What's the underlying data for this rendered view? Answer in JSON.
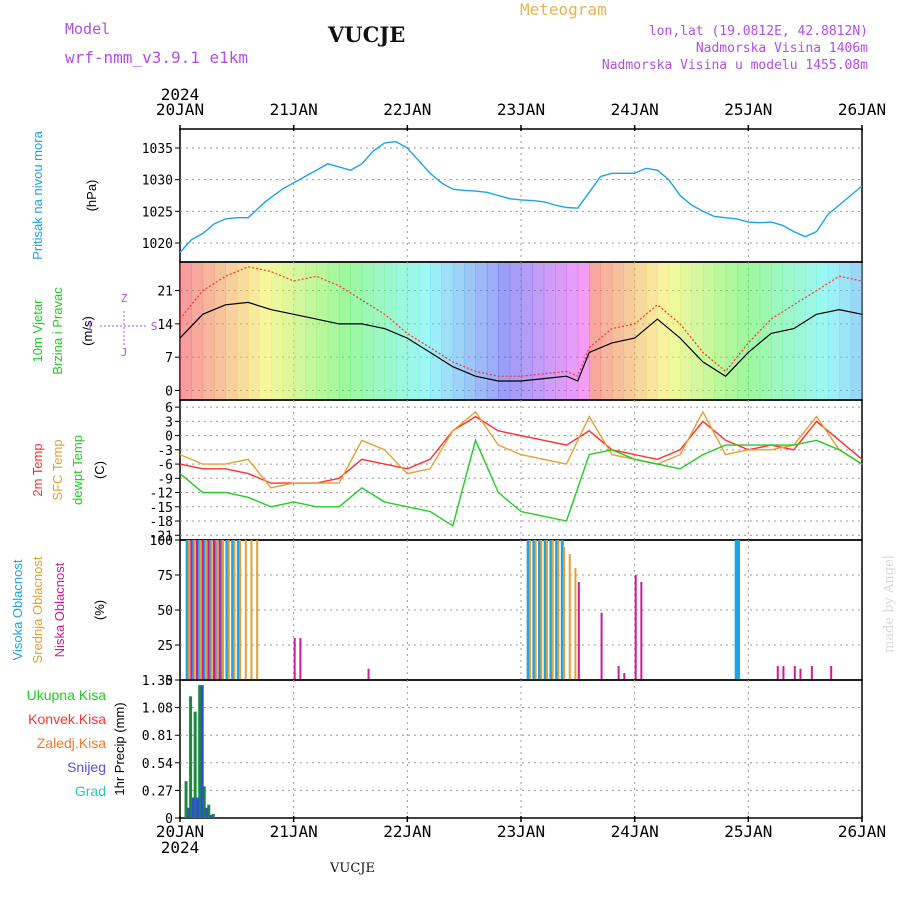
{
  "header": {
    "model_label": "Model",
    "model_name": "wrf-nmm_v3.9.1  e1km",
    "station": "VUCJE",
    "meteogram": "Meteogram",
    "coords": "lon,lat (19.0812E, 42.8812N)",
    "elevation": "Nadmorska Visina 1406m",
    "model_elevation": "Nadmorska Visina u modelu 1455.08m",
    "footer_station": "VUCJE",
    "credit": "made by Angel"
  },
  "colors": {
    "pressure": "#1aa3e6",
    "temp2m": "#ff3030",
    "sfc": "#e6a032",
    "dewpt": "#22cc22",
    "high_cloud": "#1aa3e6",
    "mid_cloud": "#e6a032",
    "low_cloud": "#cc1a99",
    "model": "#b34de6",
    "title_orange": "#e6b450"
  },
  "chart_data": [
    {
      "type": "line",
      "panel": "pressure",
      "ylabel": [
        "Pritisak na nivou mora",
        "(hPa)"
      ],
      "yticks": [
        1020,
        1025,
        1030,
        1035
      ],
      "ylim": [
        1017,
        1038
      ],
      "x_start_label": "2024",
      "x_ticks": [
        "20JAN",
        "21JAN",
        "22JAN",
        "23JAN",
        "24JAN",
        "25JAN",
        "26JAN"
      ],
      "x_days": [
        0,
        6
      ],
      "series": [
        {
          "x": [
            0,
            0.1,
            0.2,
            0.3,
            0.4,
            0.5,
            0.6,
            0.75,
            0.9,
            1.0,
            1.1,
            1.2,
            1.3,
            1.4,
            1.5,
            1.6,
            1.7,
            1.8,
            1.9,
            2.0,
            2.1,
            2.2,
            2.3,
            2.4,
            2.5,
            2.6,
            2.7,
            2.8,
            2.9,
            3.0,
            3.1,
            3.2,
            3.3,
            3.4,
            3.5,
            3.6,
            3.7,
            3.8,
            3.9,
            4.0,
            4.1,
            4.2,
            4.3,
            4.4,
            4.5,
            4.6,
            4.7,
            4.8,
            4.9,
            5.0,
            5.1,
            5.2,
            5.3,
            5.4,
            5.5,
            5.6,
            5.7,
            5.8,
            5.9,
            6.0
          ],
          "values": [
            1018.5,
            1020.5,
            1021.5,
            1023,
            1023.8,
            1024,
            1024,
            1026.5,
            1028.5,
            1029.5,
            1030.5,
            1031.5,
            1032.5,
            1032,
            1031.5,
            1032.5,
            1034.5,
            1035.8,
            1036,
            1035,
            1033,
            1031,
            1029.5,
            1028.5,
            1028.3,
            1028.2,
            1028,
            1027.5,
            1027,
            1026.8,
            1026.7,
            1026.5,
            1026,
            1025.6,
            1025.5,
            1028,
            1030.5,
            1031,
            1031,
            1031,
            1031.8,
            1031.5,
            1030,
            1027.5,
            1026,
            1025,
            1024.2,
            1024,
            1023.8,
            1023.3,
            1023.2,
            1023.3,
            1022.8,
            1021.8,
            1021,
            1021.8,
            1024.5,
            1026,
            1027.5,
            1029
          ]
        }
      ]
    },
    {
      "type": "line",
      "panel": "wind",
      "ylabel": [
        "10m Vjetar",
        "Brzina i Pravac",
        "(m/s)"
      ],
      "compass": [
        "Z",
        "I",
        "S",
        "J"
      ],
      "yticks": [
        0,
        7,
        14,
        21
      ],
      "ylim": [
        -2,
        27
      ],
      "series": [
        {
          "name": "speed",
          "x": [
            0,
            0.2,
            0.4,
            0.6,
            0.8,
            1.0,
            1.2,
            1.4,
            1.6,
            1.8,
            2.0,
            2.2,
            2.4,
            2.6,
            2.8,
            3.0,
            3.2,
            3.4,
            3.5,
            3.6,
            3.8,
            4.0,
            4.2,
            4.4,
            4.6,
            4.8,
            5.0,
            5.2,
            5.4,
            5.6,
            5.8,
            6.0
          ],
          "values": [
            11,
            16,
            18,
            18.5,
            17,
            16,
            15,
            14,
            14,
            13,
            11,
            8,
            5,
            3,
            2,
            2,
            2.5,
            3,
            2,
            8,
            10,
            11,
            15,
            11,
            6,
            3,
            8,
            12,
            13,
            16,
            17,
            16
          ]
        },
        {
          "name": "gust",
          "x": [
            0,
            0.2,
            0.4,
            0.6,
            0.8,
            1.0,
            1.2,
            1.4,
            1.6,
            1.8,
            2.0,
            2.2,
            2.4,
            2.6,
            2.8,
            3.0,
            3.2,
            3.4,
            3.5,
            3.6,
            3.8,
            4.0,
            4.2,
            4.4,
            4.6,
            4.8,
            5.0,
            5.2,
            5.4,
            5.6,
            5.8,
            6.0
          ],
          "values": [
            15,
            21,
            24,
            26,
            25,
            23,
            24,
            22,
            19,
            16,
            12,
            9,
            6,
            4,
            3,
            3,
            3.5,
            4,
            3,
            9,
            13,
            14,
            18,
            14,
            8,
            4,
            10,
            15,
            18,
            21,
            24,
            23
          ]
        }
      ]
    },
    {
      "type": "line",
      "panel": "temperature",
      "ylabel": [
        "2m Temp",
        "SFC Temp",
        "dewpt Temp",
        "(C)"
      ],
      "yticks": [
        6,
        3,
        0,
        -3,
        -6,
        -9,
        -12,
        -15,
        -18,
        -21
      ],
      "ylim": [
        -22,
        7.5
      ],
      "series": [
        {
          "name": "2m Temp",
          "x": [
            0,
            0.2,
            0.4,
            0.6,
            0.8,
            1.0,
            1.2,
            1.4,
            1.6,
            1.8,
            2.0,
            2.2,
            2.4,
            2.6,
            2.8,
            3.0,
            3.2,
            3.4,
            3.6,
            3.8,
            4.0,
            4.2,
            4.4,
            4.6,
            4.8,
            5.0,
            5.2,
            5.4,
            5.6,
            5.8,
            6.0
          ],
          "values": [
            -6,
            -7,
            -7,
            -8,
            -10,
            -10,
            -10,
            -9,
            -5,
            -6,
            -7,
            -5,
            1,
            4,
            1,
            0,
            -1,
            -2,
            1,
            -3,
            -4,
            -5,
            -3,
            3,
            -1,
            -3,
            -2,
            -3,
            3,
            -1,
            -5
          ]
        },
        {
          "name": "SFC Temp",
          "x": [
            0,
            0.2,
            0.4,
            0.6,
            0.8,
            1.0,
            1.2,
            1.4,
            1.6,
            1.8,
            2.0,
            2.2,
            2.4,
            2.6,
            2.8,
            3.0,
            3.2,
            3.4,
            3.6,
            3.8,
            4.0,
            4.2,
            4.4,
            4.6,
            4.8,
            5.0,
            5.2,
            5.4,
            5.6,
            5.8,
            6.0
          ],
          "values": [
            -4,
            -6,
            -6,
            -5,
            -11,
            -10,
            -10,
            -10,
            -1,
            -3,
            -8,
            -7,
            1,
            5,
            -2,
            -4,
            -5,
            -6,
            4,
            -4,
            -5,
            -6,
            -4,
            5,
            -4,
            -3,
            -3,
            -2,
            4,
            -3,
            -6
          ]
        },
        {
          "name": "dewpt Temp",
          "x": [
            0,
            0.2,
            0.4,
            0.6,
            0.8,
            1.0,
            1.2,
            1.4,
            1.6,
            1.8,
            2.0,
            2.2,
            2.4,
            2.6,
            2.8,
            3.0,
            3.2,
            3.4,
            3.6,
            3.8,
            4.0,
            4.2,
            4.4,
            4.6,
            4.8,
            5.0,
            5.2,
            5.4,
            5.6,
            5.8,
            6.0
          ],
          "values": [
            -8,
            -12,
            -12,
            -13,
            -15,
            -14,
            -15,
            -15,
            -11,
            -14,
            -15,
            -16,
            -19,
            -1,
            -12,
            -16,
            -17,
            -18,
            -4,
            -3,
            -5,
            -6,
            -7,
            -4,
            -2,
            -2,
            -2,
            -2,
            -1,
            -3,
            -6
          ]
        }
      ]
    },
    {
      "type": "bar",
      "panel": "cloud",
      "ylabel": [
        "Visoka Oblacnost",
        "Srednja Oblacnost",
        "Niska Oblacnost",
        "(%)"
      ],
      "yticks": [
        0,
        25,
        50,
        75,
        100
      ],
      "ylim": [
        0,
        100
      ],
      "series": [
        {
          "name": "Visoka Oblacnost",
          "x": [
            0.05,
            0.1,
            0.15,
            0.2,
            0.25,
            0.3,
            0.35,
            0.4,
            0.45,
            0.5,
            3.05,
            3.1,
            3.15,
            3.2,
            3.25,
            3.3,
            3.35,
            4.88,
            4.9
          ],
          "values": [
            100,
            100,
            100,
            100,
            100,
            100,
            100,
            100,
            100,
            100,
            100,
            100,
            100,
            100,
            100,
            100,
            100,
            100,
            100
          ]
        },
        {
          "name": "Srednja Oblacnost",
          "x": [
            0.07,
            0.12,
            0.17,
            0.22,
            0.27,
            0.32,
            0.37,
            0.42,
            0.47,
            0.52,
            0.57,
            0.62,
            0.67,
            3.07,
            3.12,
            3.17,
            3.22,
            3.27,
            3.32,
            3.37,
            3.42,
            3.47
          ],
          "values": [
            100,
            100,
            100,
            100,
            100,
            100,
            100,
            100,
            100,
            100,
            100,
            100,
            100,
            100,
            100,
            100,
            100,
            100,
            100,
            95,
            90,
            80
          ]
        },
        {
          "name": "Niska Oblacnost",
          "x": [
            0.09,
            0.14,
            0.19,
            0.24,
            0.29,
            0.34,
            1.0,
            1.05,
            1.65,
            3.5,
            3.7,
            3.85,
            3.9,
            4.0,
            4.05,
            5.25,
            5.3,
            5.4,
            5.45,
            5.55,
            5.72
          ],
          "values": [
            100,
            100,
            100,
            100,
            100,
            100,
            30,
            30,
            8,
            70,
            48,
            10,
            5,
            75,
            70,
            10,
            10,
            10,
            8,
            10,
            10
          ]
        }
      ]
    },
    {
      "type": "bar",
      "panel": "precip",
      "ylabel": [
        "1hr Precip (mm)"
      ],
      "legend": [
        "Ukupna Kisa",
        "Konvek.Kisa",
        "Zaledj.Kisa",
        "Snijeg",
        "Grad"
      ],
      "yticks": [
        0,
        0.27,
        0.54,
        0.81,
        1.08,
        1.35
      ],
      "ylim": [
        0,
        1.35
      ],
      "series": [
        {
          "name": "Ukupna Kisa",
          "x": [
            0.04,
            0.08,
            0.12,
            0.16,
            0.2,
            0.24,
            0.28
          ],
          "values": [
            0.36,
            1.19,
            1.04,
            1.3,
            0.31,
            0.13,
            0.04
          ]
        },
        {
          "name": "Snijeg",
          "x": [
            0.04,
            0.08,
            0.12,
            0.16,
            0.2,
            0.24
          ],
          "values": [
            0.1,
            0.2,
            0.2,
            1.3,
            0.1,
            0.03
          ]
        }
      ]
    }
  ]
}
